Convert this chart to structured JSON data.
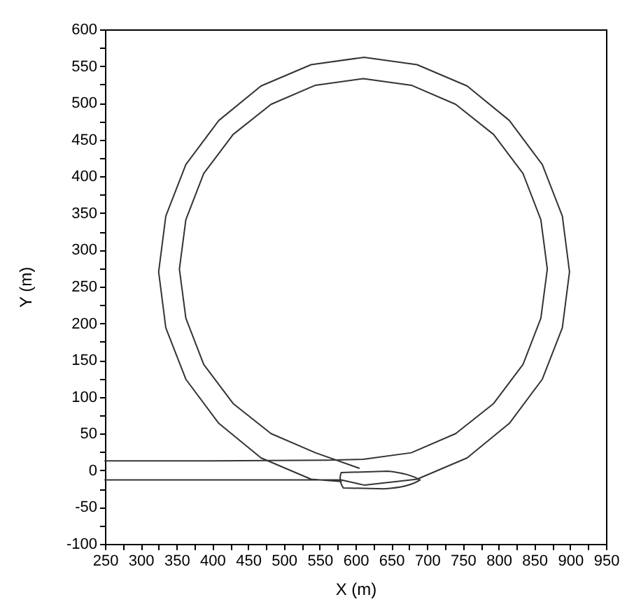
{
  "chart_data": {
    "type": "line",
    "xlabel": "X (m)",
    "ylabel": "Y (m)",
    "xlim": [
      250,
      950
    ],
    "ylim": [
      -100,
      600
    ],
    "xticks": [
      250,
      {
        "value": 275,
        "label": null
      },
      300,
      {
        "value": 325,
        "label": null
      },
      350,
      {
        "value": 375,
        "label": null
      },
      400,
      {
        "value": 425,
        "label": null
      },
      450,
      {
        "value": 475,
        "label": null
      },
      500,
      {
        "value": 525,
        "label": null
      },
      550,
      {
        "value": 575,
        "label": null
      },
      600,
      {
        "value": 625,
        "label": null
      },
      650,
      {
        "value": 675,
        "label": null
      },
      700,
      {
        "value": 725,
        "label": null
      },
      750,
      {
        "value": 775,
        "label": null
      },
      800,
      {
        "value": 825,
        "label": null
      },
      850,
      {
        "value": 875,
        "label": null
      },
      900,
      {
        "value": 925,
        "label": null
      },
      950
    ],
    "yticks": [
      -100,
      {
        "value": -75,
        "label": null
      },
      -50,
      {
        "value": -25,
        "label": null
      },
      0,
      {
        "value": 25,
        "label": null
      },
      50,
      {
        "value": 75,
        "label": null
      },
      100,
      {
        "value": 125,
        "label": null
      },
      150,
      {
        "value": 175,
        "label": null
      },
      200,
      {
        "value": 225,
        "label": null
      },
      250,
      {
        "value": 275,
        "label": null
      },
      300,
      {
        "value": 325,
        "label": null
      },
      350,
      {
        "value": 375,
        "label": null
      },
      400,
      {
        "value": 425,
        "label": null
      },
      450,
      {
        "value": 475,
        "label": null
      },
      500,
      {
        "value": 525,
        "label": null
      },
      550,
      {
        "value": 575,
        "label": null
      },
      600
    ],
    "grid": false,
    "legend": false,
    "marker": "none",
    "line_style": "solid",
    "series": [
      {
        "color": "#333333",
        "x": [
          250,
          400,
          560,
          611,
          678,
          740,
          793,
          834,
          859,
          868,
          859,
          834,
          793,
          740,
          678,
          611,
          544,
          482,
          429,
          388,
          363,
          354,
          363,
          388,
          429,
          482,
          544,
          605
        ],
        "values": [
          13,
          13,
          14,
          15,
          24,
          50,
          91,
          144,
          207,
          274,
          341,
          404,
          457,
          498,
          524,
          533,
          524,
          498,
          457,
          404,
          341,
          274,
          207,
          144,
          91,
          50,
          24,
          3
        ]
      },
      {
        "color": "#333333",
        "x": [
          250,
          400,
          580,
          612,
          686,
          756,
          815,
          861,
          889,
          899,
          889,
          861,
          815,
          756,
          686,
          612,
          538,
          468,
          409,
          363,
          335,
          325,
          335,
          363,
          409,
          468,
          538,
          580
        ],
        "values": [
          -13,
          -13,
          -13,
          -20,
          -12,
          17,
          64,
          124,
          194,
          270,
          346,
          416,
          476,
          523,
          552,
          562,
          552,
          523,
          476,
          416,
          346,
          270,
          194,
          124,
          64,
          17,
          -12,
          -15
        ]
      }
    ]
  }
}
